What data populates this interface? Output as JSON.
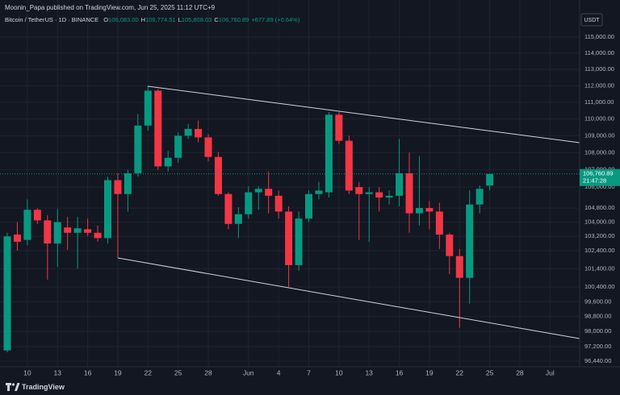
{
  "header": "Moonin_Papa published on TradingView.com, Jun 25, 2025 11:12 UTC+9",
  "footer": "TradingView",
  "chart_data": {
    "type": "candlestick",
    "title": "Bitcoin / TetherUS · 1D · BINANCE",
    "ohlc_legend": [
      {
        "label": "O",
        "value": "106,083.00"
      },
      {
        "label": "H",
        "value": "106,774.51"
      },
      {
        "label": "L",
        "value": "105,808.03"
      },
      {
        "label": "C",
        "value": "106,760.89"
      }
    ],
    "change": "+677.89 (+0.64%)",
    "currency": "USDT",
    "categories": [
      null,
      null,
      "10",
      null,
      null,
      "13",
      null,
      null,
      "16",
      null,
      null,
      "19",
      null,
      null,
      "22",
      null,
      null,
      "25",
      null,
      null,
      "28",
      null,
      null,
      null,
      "Jun",
      null,
      null,
      "4",
      null,
      null,
      "7",
      null,
      null,
      "10",
      null,
      null,
      "13",
      null,
      null,
      "16",
      null,
      null,
      "19",
      null,
      null,
      "22",
      null,
      null,
      "25",
      null,
      null,
      "28",
      null,
      null,
      "Jul"
    ],
    "open": [
      97000,
      103300,
      103000,
      104700,
      104100,
      102800,
      103700,
      103400,
      103600,
      103400,
      103100,
      106400,
      105600,
      106800,
      109600,
      111700,
      107200,
      107700,
      109000,
      109400,
      108900,
      107750,
      105600,
      103900,
      104450,
      105700,
      105900,
      105500,
      104600,
      101600,
      104200,
      105600,
      105700,
      110250,
      108700,
      106000,
      105600,
      105700,
      105400,
      105500,
      106800,
      104500,
      104800,
      104600,
      103300,
      102100,
      100900,
      105000,
      106083,
      null,
      null,
      null,
      null,
      null,
      null
    ],
    "high": [
      103400,
      104000,
      105300,
      104800,
      104400,
      104750,
      104300,
      104300,
      104200,
      103800,
      106600,
      106800,
      107000,
      110300,
      112000,
      111800,
      108100,
      109200,
      109700,
      109900,
      109100,
      108050,
      105700,
      104850,
      106050,
      106050,
      106900,
      105800,
      104900,
      104600,
      105800,
      106300,
      110400,
      110400,
      109000,
      106300,
      106000,
      106000,
      105800,
      108800,
      108000,
      107800,
      105200,
      105100,
      103400,
      102500,
      105800,
      106100,
      106774.51,
      null,
      null,
      null,
      null,
      null,
      null
    ],
    "low": [
      96900,
      102400,
      102700,
      103900,
      100800,
      101500,
      102450,
      101400,
      103200,
      102900,
      102800,
      102000,
      104600,
      106600,
      109300,
      107000,
      106900,
      107400,
      108800,
      108600,
      107500,
      105500,
      103600,
      103100,
      104200,
      104700,
      104500,
      104200,
      100400,
      101300,
      104000,
      105300,
      105400,
      108500,
      105600,
      103000,
      102900,
      104600,
      105000,
      104900,
      103400,
      103800,
      103600,
      102500,
      101100,
      98200,
      99500,
      104500,
      105808.03,
      null,
      null,
      null,
      null,
      null,
      null
    ],
    "close": [
      103200,
      102900,
      104700,
      104100,
      102800,
      104000,
      103400,
      103650,
      103400,
      103100,
      106400,
      105600,
      106800,
      109600,
      111700,
      107200,
      107700,
      109000,
      109400,
      108900,
      107750,
      105600,
      103900,
      104450,
      105700,
      105900,
      105500,
      104600,
      101600,
      104200,
      105600,
      105800,
      110250,
      108700,
      105800,
      105600,
      105700,
      105400,
      105500,
      106800,
      104500,
      104800,
      104600,
      103300,
      102100,
      100900,
      105000,
      105900,
      106760.89,
      null,
      null,
      null,
      null,
      null,
      null
    ],
    "up_color": "#089981",
    "down_color": "#f23645",
    "log_scale": true,
    "grid": true,
    "ylim": [
      96140,
      117340
    ],
    "yticks": [
      {
        "value": 115000,
        "label": "115,000.00"
      },
      {
        "value": 114000,
        "label": "114,000.00"
      },
      {
        "value": 113000,
        "label": "113,000.00"
      },
      {
        "value": 112000,
        "label": "112,000.00"
      },
      {
        "value": 111000,
        "label": "111,000.00"
      },
      {
        "value": 110000,
        "label": "110,000.00"
      },
      {
        "value": 109000,
        "label": "109,000.00"
      },
      {
        "value": 108000,
        "label": "108,000.00"
      },
      {
        "value": 107000,
        "label": "107,000.00"
      },
      {
        "value": 106000,
        "label": "106,000.00"
      },
      {
        "value": 104800,
        "label": "104,800.00"
      },
      {
        "value": 104000,
        "label": "104,000.00"
      },
      {
        "value": 103200,
        "label": "103,200.00"
      },
      {
        "value": 102400,
        "label": "102,400.00"
      },
      {
        "value": 101400,
        "label": "101,400.00"
      },
      {
        "value": 100400,
        "label": "100,400.00"
      },
      {
        "value": 99600,
        "label": "99,600.00"
      },
      {
        "value": 98800,
        "label": "98,800.00"
      },
      {
        "value": 98000,
        "label": "98,000.00"
      },
      {
        "value": 97200,
        "label": "97,200.00"
      },
      {
        "value": 96440,
        "label": "96,440.00"
      }
    ],
    "last_price": {
      "value": 106760.89,
      "label": "106,760.89"
    },
    "countdown": "21:47:28"
  }
}
